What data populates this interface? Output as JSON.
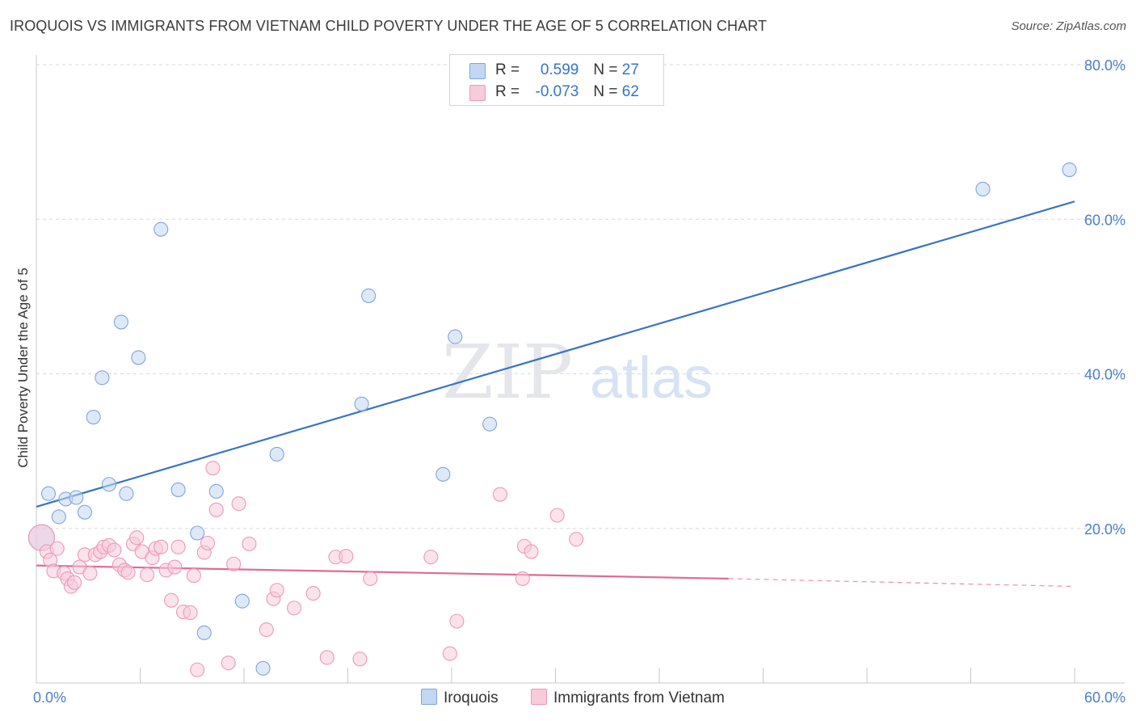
{
  "title": "IROQUOIS VS IMMIGRANTS FROM VIETNAM CHILD POVERTY UNDER THE AGE OF 5 CORRELATION CHART",
  "source": "Source: ZipAtlas.com",
  "watermark": {
    "zip": "ZIP",
    "atlas": "atlas"
  },
  "colors": {
    "blue": "#3574c9",
    "blue_fill": "#c3d7f3",
    "blue_stroke": "#7fa6dc",
    "pink": "#e06a96",
    "pink_fill": "#f7cbda",
    "pink_stroke": "#eb9ab8",
    "grid": "#d9d9d9",
    "tick_text": "#4a7fc8"
  },
  "legend": {
    "rows": [
      {
        "r_label": "R = ",
        "r_value": "0.599",
        "n_label": "N = ",
        "n_value": "27"
      },
      {
        "r_label": "R = ",
        "r_value": "-0.073",
        "n_label": "N = ",
        "n_value": "62"
      }
    ]
  },
  "bottom_legend": [
    "Iroquois",
    "Immigrants from Vietnam"
  ],
  "chart_data": {
    "type": "scatter",
    "title": "IROQUOIS VS IMMIGRANTS FROM VIETNAM CHILD POVERTY UNDER THE AGE OF 5 CORRELATION CHART",
    "xlabel": "",
    "ylabel": "Child Poverty Under the Age of 5",
    "xlim": [
      0,
      60
    ],
    "ylim": [
      0,
      80
    ],
    "x_tick_labels": [
      "0.0%",
      "60.0%"
    ],
    "y_ticks": [
      20,
      40,
      60,
      80
    ],
    "y_tick_labels": [
      "20.0%",
      "40.0%",
      "60.0%",
      "80.0%"
    ],
    "grid": "horizontal dashed",
    "legend_position": "top-center",
    "series": [
      {
        "name": "Iroquois",
        "color": "#3574c9",
        "trend": {
          "x": [
            0,
            60
          ],
          "y": [
            22.8,
            62.3
          ]
        },
        "points": [
          [
            0.3,
            18.8
          ],
          [
            0.7,
            24.5
          ],
          [
            1.3,
            21.5
          ],
          [
            1.7,
            23.8
          ],
          [
            2.3,
            24.0
          ],
          [
            2.8,
            22.1
          ],
          [
            3.3,
            34.4
          ],
          [
            3.8,
            39.5
          ],
          [
            4.2,
            25.7
          ],
          [
            4.9,
            46.7
          ],
          [
            5.2,
            24.5
          ],
          [
            5.9,
            42.1
          ],
          [
            7.2,
            58.7
          ],
          [
            8.2,
            25.0
          ],
          [
            9.3,
            19.4
          ],
          [
            9.7,
            6.5
          ],
          [
            10.4,
            24.8
          ],
          [
            11.9,
            10.6
          ],
          [
            13.1,
            1.9
          ],
          [
            13.9,
            29.6
          ],
          [
            18.8,
            36.1
          ],
          [
            19.2,
            50.1
          ],
          [
            23.5,
            27.0
          ],
          [
            24.2,
            44.8
          ],
          [
            26.2,
            33.5
          ],
          [
            54.7,
            63.9
          ],
          [
            59.7,
            66.4
          ]
        ]
      },
      {
        "name": "Immigrants from Vietnam",
        "color": "#e06a96",
        "trend": {
          "x": [
            0,
            40
          ],
          "y": [
            15.2,
            13.5
          ],
          "dashed_to": [
            60,
            12.5
          ]
        },
        "points": [
          [
            0.3,
            18.8
          ],
          [
            0.6,
            17.0
          ],
          [
            0.8,
            15.9
          ],
          [
            1.0,
            14.5
          ],
          [
            1.2,
            17.4
          ],
          [
            1.6,
            14.2
          ],
          [
            1.8,
            13.5
          ],
          [
            2.0,
            12.5
          ],
          [
            2.2,
            13.0
          ],
          [
            2.5,
            15.0
          ],
          [
            2.8,
            16.6
          ],
          [
            3.1,
            14.2
          ],
          [
            3.4,
            16.6
          ],
          [
            3.7,
            17.0
          ],
          [
            3.9,
            17.6
          ],
          [
            4.2,
            17.8
          ],
          [
            4.5,
            17.2
          ],
          [
            4.8,
            15.3
          ],
          [
            5.1,
            14.6
          ],
          [
            5.3,
            14.3
          ],
          [
            5.6,
            18.0
          ],
          [
            5.8,
            18.8
          ],
          [
            6.1,
            17.0
          ],
          [
            6.4,
            14.0
          ],
          [
            6.7,
            16.2
          ],
          [
            6.9,
            17.4
          ],
          [
            7.2,
            17.6
          ],
          [
            7.5,
            14.6
          ],
          [
            7.8,
            10.7
          ],
          [
            8.0,
            15.0
          ],
          [
            8.2,
            17.6
          ],
          [
            8.5,
            9.2
          ],
          [
            8.9,
            9.1
          ],
          [
            9.1,
            13.9
          ],
          [
            9.3,
            1.7
          ],
          [
            9.7,
            16.9
          ],
          [
            9.9,
            18.1
          ],
          [
            10.2,
            27.8
          ],
          [
            10.4,
            22.4
          ],
          [
            11.1,
            2.6
          ],
          [
            11.4,
            15.4
          ],
          [
            11.7,
            23.2
          ],
          [
            12.3,
            18.0
          ],
          [
            13.3,
            6.9
          ],
          [
            13.7,
            10.9
          ],
          [
            13.9,
            12.0
          ],
          [
            14.9,
            9.7
          ],
          [
            16.0,
            11.6
          ],
          [
            16.8,
            3.3
          ],
          [
            17.3,
            16.3
          ],
          [
            17.9,
            16.4
          ],
          [
            18.7,
            3.1
          ],
          [
            19.3,
            13.5
          ],
          [
            22.8,
            16.3
          ],
          [
            23.9,
            3.8
          ],
          [
            24.3,
            8.0
          ],
          [
            26.8,
            24.4
          ],
          [
            28.1,
            13.5
          ],
          [
            28.2,
            17.7
          ],
          [
            28.6,
            17.0
          ],
          [
            30.1,
            21.7
          ],
          [
            31.2,
            18.6
          ]
        ]
      }
    ]
  }
}
